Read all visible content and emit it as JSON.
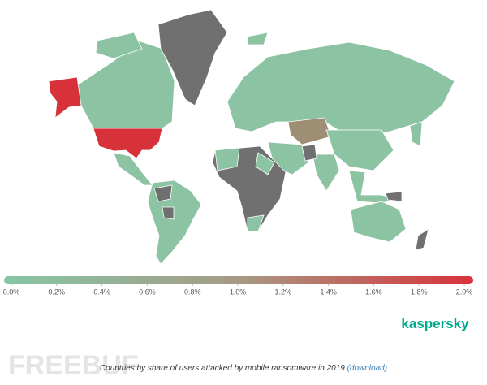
{
  "map": {
    "colorbar": {
      "lim": [
        0,
        2
      ],
      "colors": [
        "#86c6a5",
        "#a69a84",
        "#d8323a"
      ],
      "ticks": [
        {
          "value": 0,
          "label": "0.0%"
        },
        {
          "value": 0.2,
          "label": "0.2%"
        },
        {
          "value": 0.4,
          "label": "0.4%"
        },
        {
          "value": 0.6,
          "label": "0.6%"
        },
        {
          "value": 0.8,
          "label": "0.8%"
        },
        {
          "value": 1,
          "label": "1.0%"
        },
        {
          "value": 1.2,
          "label": "1.2%"
        },
        {
          "value": 1.4,
          "label": "1.4%"
        },
        {
          "value": 1.6,
          "label": "1.6%"
        },
        {
          "value": 1.8,
          "label": "1.8%"
        },
        {
          "value": 2,
          "label": "2.0%"
        }
      ]
    }
  },
  "logo": "kaspersky",
  "caption": {
    "text": "Countries by share of users attacked by mobile ransomware in 2019",
    "link": "(download)"
  },
  "watermark": "FREEBUF"
}
